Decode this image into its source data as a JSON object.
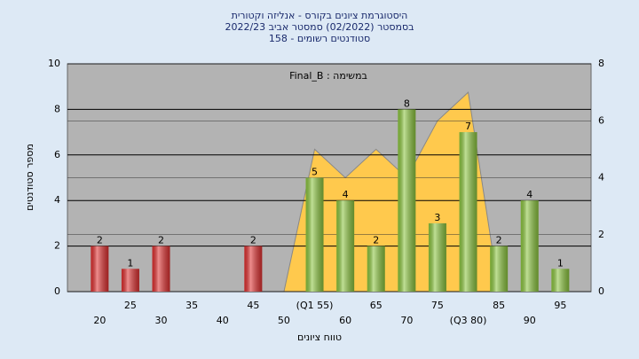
{
  "chart_data": {
    "type": "bar",
    "title_lines": [
      "היסטוגרמת ציונים בקורס - אנליזה וקטורית",
      "בסמסטר  (02/2022)  סמסטר אביב 2022/23",
      "סטודנטים רשומים - 158"
    ],
    "annotation": "Final_B : במשימה",
    "x_label": "טווח ציונים",
    "y_label": "מספר סטודנטים",
    "categories": [
      "20",
      "25",
      "30",
      "35",
      "40",
      "45",
      "50",
      "(Q1 55)",
      "60",
      "65",
      "70",
      "75",
      "(Q3 80)",
      "85",
      "90",
      "95"
    ],
    "values": [
      2,
      1,
      2,
      0,
      0,
      2,
      0,
      5,
      4,
      2,
      8,
      3,
      7,
      2,
      4,
      1
    ],
    "colors": [
      "#e03030",
      "#e03030",
      "#e03030",
      "#e03030",
      "#e03030",
      "#e03030",
      "#e03030",
      "#8cc63f",
      "#8cc63f",
      "#8cc63f",
      "#8cc63f",
      "#8cc63f",
      "#8cc63f",
      "#8cc63f",
      "#8cc63f",
      "#8cc63f"
    ],
    "ylim": [
      0,
      10
    ],
    "yticks": [
      0,
      2,
      4,
      6,
      8,
      10
    ],
    "y2lim": [
      0,
      8
    ],
    "y2ticks": [
      0,
      2,
      4,
      6,
      8
    ],
    "area": {
      "axis": "y2",
      "color": "#ffc94d",
      "values": [
        null,
        null,
        null,
        null,
        null,
        null,
        0,
        5,
        4,
        5,
        4,
        6,
        7,
        0,
        null,
        null
      ]
    },
    "grid": true
  }
}
